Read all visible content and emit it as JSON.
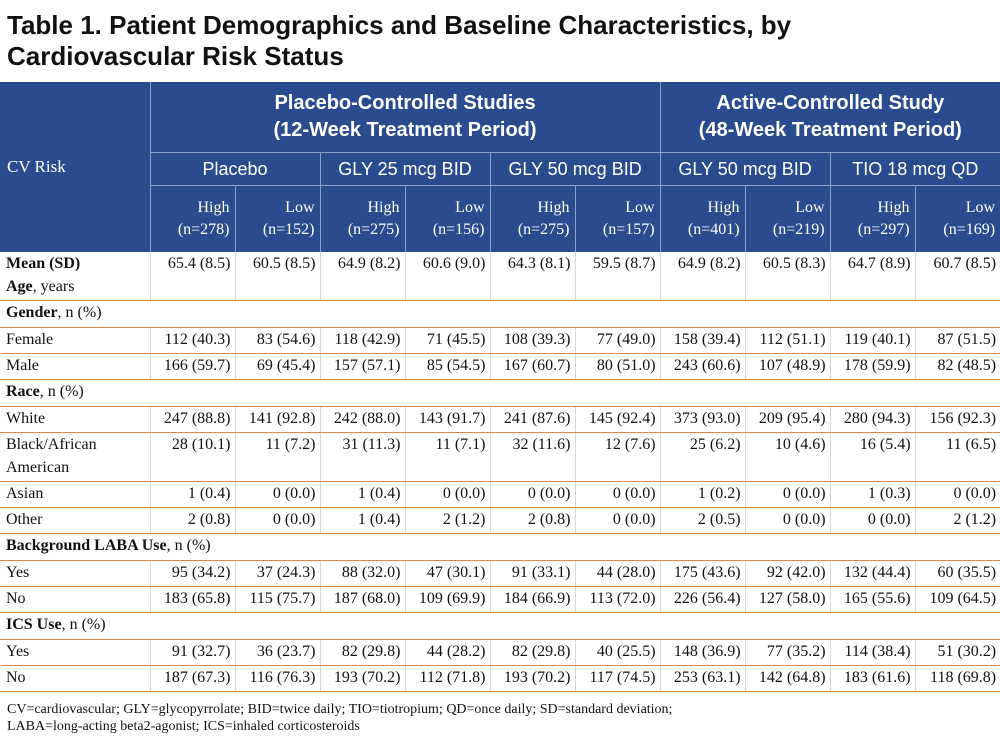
{
  "title": {
    "line1": "Table 1. Patient Demographics and Baseline Characteristics, by",
    "line2": "Cardiovascular Risk Status"
  },
  "header": {
    "cv_risk": "CV Risk",
    "group1": {
      "line1": "Placebo-Controlled Studies",
      "line2": "(12-Week Treatment Period)"
    },
    "group2": {
      "line1": "Active-Controlled Study",
      "line2": "(48-Week Treatment Period)"
    },
    "treatments": [
      "Placebo",
      "GLY 25 mcg BID",
      "GLY 50 mcg BID",
      "GLY 50 mcg BID",
      "TIO 18 mcg QD"
    ],
    "risk": [
      {
        "level": "High",
        "n": "(n=278)"
      },
      {
        "level": "Low",
        "n": "(n=152)"
      },
      {
        "level": "High",
        "n": "(n=275)"
      },
      {
        "level": "Low",
        "n": "(n=156)"
      },
      {
        "level": "High",
        "n": "(n=275)"
      },
      {
        "level": "Low",
        "n": "(n=157)"
      },
      {
        "level": "High",
        "n": "(n=401)"
      },
      {
        "level": "Low",
        "n": "(n=219)"
      },
      {
        "level": "High",
        "n": "(n=297)"
      },
      {
        "level": "Low",
        "n": "(n=169)"
      }
    ]
  },
  "age": {
    "label_bold": "Mean (SD)",
    "label_bold2": "Age",
    "label_rest": ", years",
    "values": [
      "65.4 (8.5)",
      "60.5 (8.5)",
      "64.9 (8.2)",
      "60.6 (9.0)",
      "64.3 (8.1)",
      "59.5 (8.7)",
      "64.9 (8.2)",
      "60.5 (8.3)",
      "64.7 (8.9)",
      "60.7 (8.5)"
    ]
  },
  "gender": {
    "label_bold": "Gender",
    "label_rest": ", n (%)",
    "rows": [
      {
        "label": "Female",
        "values": [
          "112 (40.3)",
          "83 (54.6)",
          "118 (42.9)",
          "71 (45.5)",
          "108 (39.3)",
          "77 (49.0)",
          "158 (39.4)",
          "112 (51.1)",
          "119 (40.1)",
          "87 (51.5)"
        ]
      },
      {
        "label": "Male",
        "values": [
          "166 (59.7)",
          "69 (45.4)",
          "157 (57.1)",
          "85 (54.5)",
          "167 (60.7)",
          "80 (51.0)",
          "243 (60.6)",
          "107 (48.9)",
          "178 (59.9)",
          "82 (48.5)"
        ]
      }
    ]
  },
  "race": {
    "label_bold": "Race",
    "label_rest": ", n (%)",
    "rows": [
      {
        "label": "White",
        "values": [
          "247 (88.8)",
          "141 (92.8)",
          "242 (88.0)",
          "143 (91.7)",
          "241 (87.6)",
          "145 (92.4)",
          "373 (93.0)",
          "209 (95.4)",
          "280 (94.3)",
          "156 (92.3)"
        ]
      },
      {
        "label": "Black/African American",
        "values": [
          "28 (10.1)",
          "11 (7.2)",
          "31 (11.3)",
          "11 (7.1)",
          "32 (11.6)",
          "12 (7.6)",
          "25 (6.2)",
          "10 (4.6)",
          "16 (5.4)",
          "11 (6.5)"
        ]
      },
      {
        "label": "Asian",
        "values": [
          "1 (0.4)",
          "0 (0.0)",
          "1 (0.4)",
          "0 (0.0)",
          "0 (0.0)",
          "0 (0.0)",
          "1 (0.2)",
          "0 (0.0)",
          "1 (0.3)",
          "0 (0.0)"
        ]
      },
      {
        "label": "Other",
        "values": [
          "2 (0.8)",
          "0 (0.0)",
          "1 (0.4)",
          "2 (1.2)",
          "2 (0.8)",
          "0 (0.0)",
          "2 (0.5)",
          "0 (0.0)",
          "0 (0.0)",
          "2 (1.2)"
        ]
      }
    ]
  },
  "laba": {
    "label_bold": "Background LABA Use",
    "label_rest": ", n (%)",
    "rows": [
      {
        "label": "Yes",
        "values": [
          "95 (34.2)",
          "37 (24.3)",
          "88 (32.0)",
          "47 (30.1)",
          "91 (33.1)",
          "44 (28.0)",
          "175 (43.6)",
          "92 (42.0)",
          "132 (44.4)",
          "60 (35.5)"
        ]
      },
      {
        "label": "No",
        "values": [
          "183 (65.8)",
          "115 (75.7)",
          "187 (68.0)",
          "109 (69.9)",
          "184 (66.9)",
          "113 (72.0)",
          "226 (56.4)",
          "127 (58.0)",
          "165 (55.6)",
          "109 (64.5)"
        ]
      }
    ]
  },
  "ics": {
    "label_bold": "ICS Use",
    "label_rest": ", n (%)",
    "rows": [
      {
        "label": "Yes",
        "values": [
          "91 (32.7)",
          "36 (23.7)",
          "82 (29.8)",
          "44 (28.2)",
          "82 (29.8)",
          "40 (25.5)",
          "148 (36.9)",
          "77 (35.2)",
          "114 (38.4)",
          "51 (30.2)"
        ]
      },
      {
        "label": "No",
        "values": [
          "187 (67.3)",
          "116 (76.3)",
          "193 (70.2)",
          "112 (71.8)",
          "193 (70.2)",
          "117 (74.5)",
          "253 (63.1)",
          "142 (64.8)",
          "183 (61.6)",
          "118 (69.8)"
        ]
      }
    ]
  },
  "footnote": {
    "line1": "CV=cardiovascular; GLY=glycopyrrolate; BID=twice daily;  TIO=tiotropium; QD=once daily; SD=standard deviation;",
    "line2": "LABA=long-acting beta2-agonist; ICS=inhaled corticosteroids"
  },
  "colors": {
    "header_bg": "#2a4b8d",
    "row_rule": "#e08a4a"
  }
}
